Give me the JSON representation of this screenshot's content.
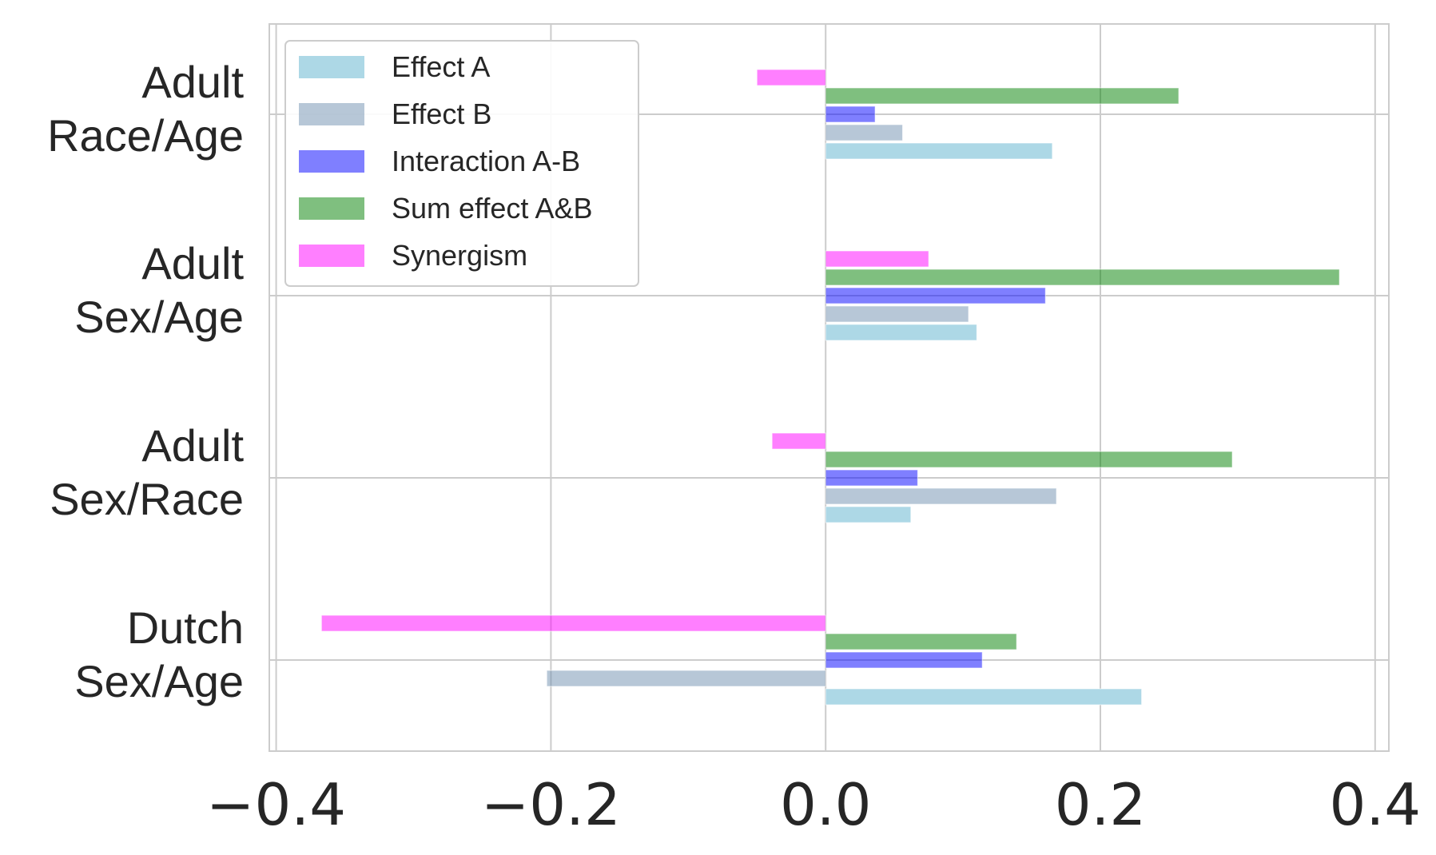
{
  "chart_data": {
    "type": "bar",
    "orientation": "horizontal",
    "categories": [
      [
        "Adult",
        "Race/Age"
      ],
      [
        "Adult",
        "Sex/Age"
      ],
      [
        "Adult",
        "Sex/Race"
      ],
      [
        "Dutch",
        "Sex/Age"
      ]
    ],
    "series": [
      {
        "name": "Effect A",
        "color": "#add8e6",
        "values": [
          0.165,
          0.11,
          0.062,
          0.23
        ]
      },
      {
        "name": "Effect B",
        "color": "#708fb0",
        "values": [
          0.056,
          0.104,
          0.168,
          -0.203
        ]
      },
      {
        "name": "Interaction A-B",
        "color": "#0000ff",
        "values": [
          0.036,
          0.16,
          0.067,
          0.114
        ]
      },
      {
        "name": "Sum effect A&B",
        "color": "#008000",
        "values": [
          0.257,
          0.374,
          0.296,
          0.139
        ]
      },
      {
        "name": "Synergism",
        "color": "#ff00ff",
        "values": [
          -0.05,
          0.075,
          -0.039,
          -0.367
        ]
      }
    ],
    "xlim": [
      -0.405,
      0.41
    ],
    "xticks": [
      -0.4,
      -0.2,
      0.0,
      0.2,
      0.4
    ],
    "xtick_labels": [
      "−0.4",
      "−0.2",
      "0.0",
      "0.2",
      "0.4"
    ],
    "grid": true,
    "legend_position": "upper-left",
    "title": "",
    "xlabel": "",
    "ylabel": ""
  }
}
